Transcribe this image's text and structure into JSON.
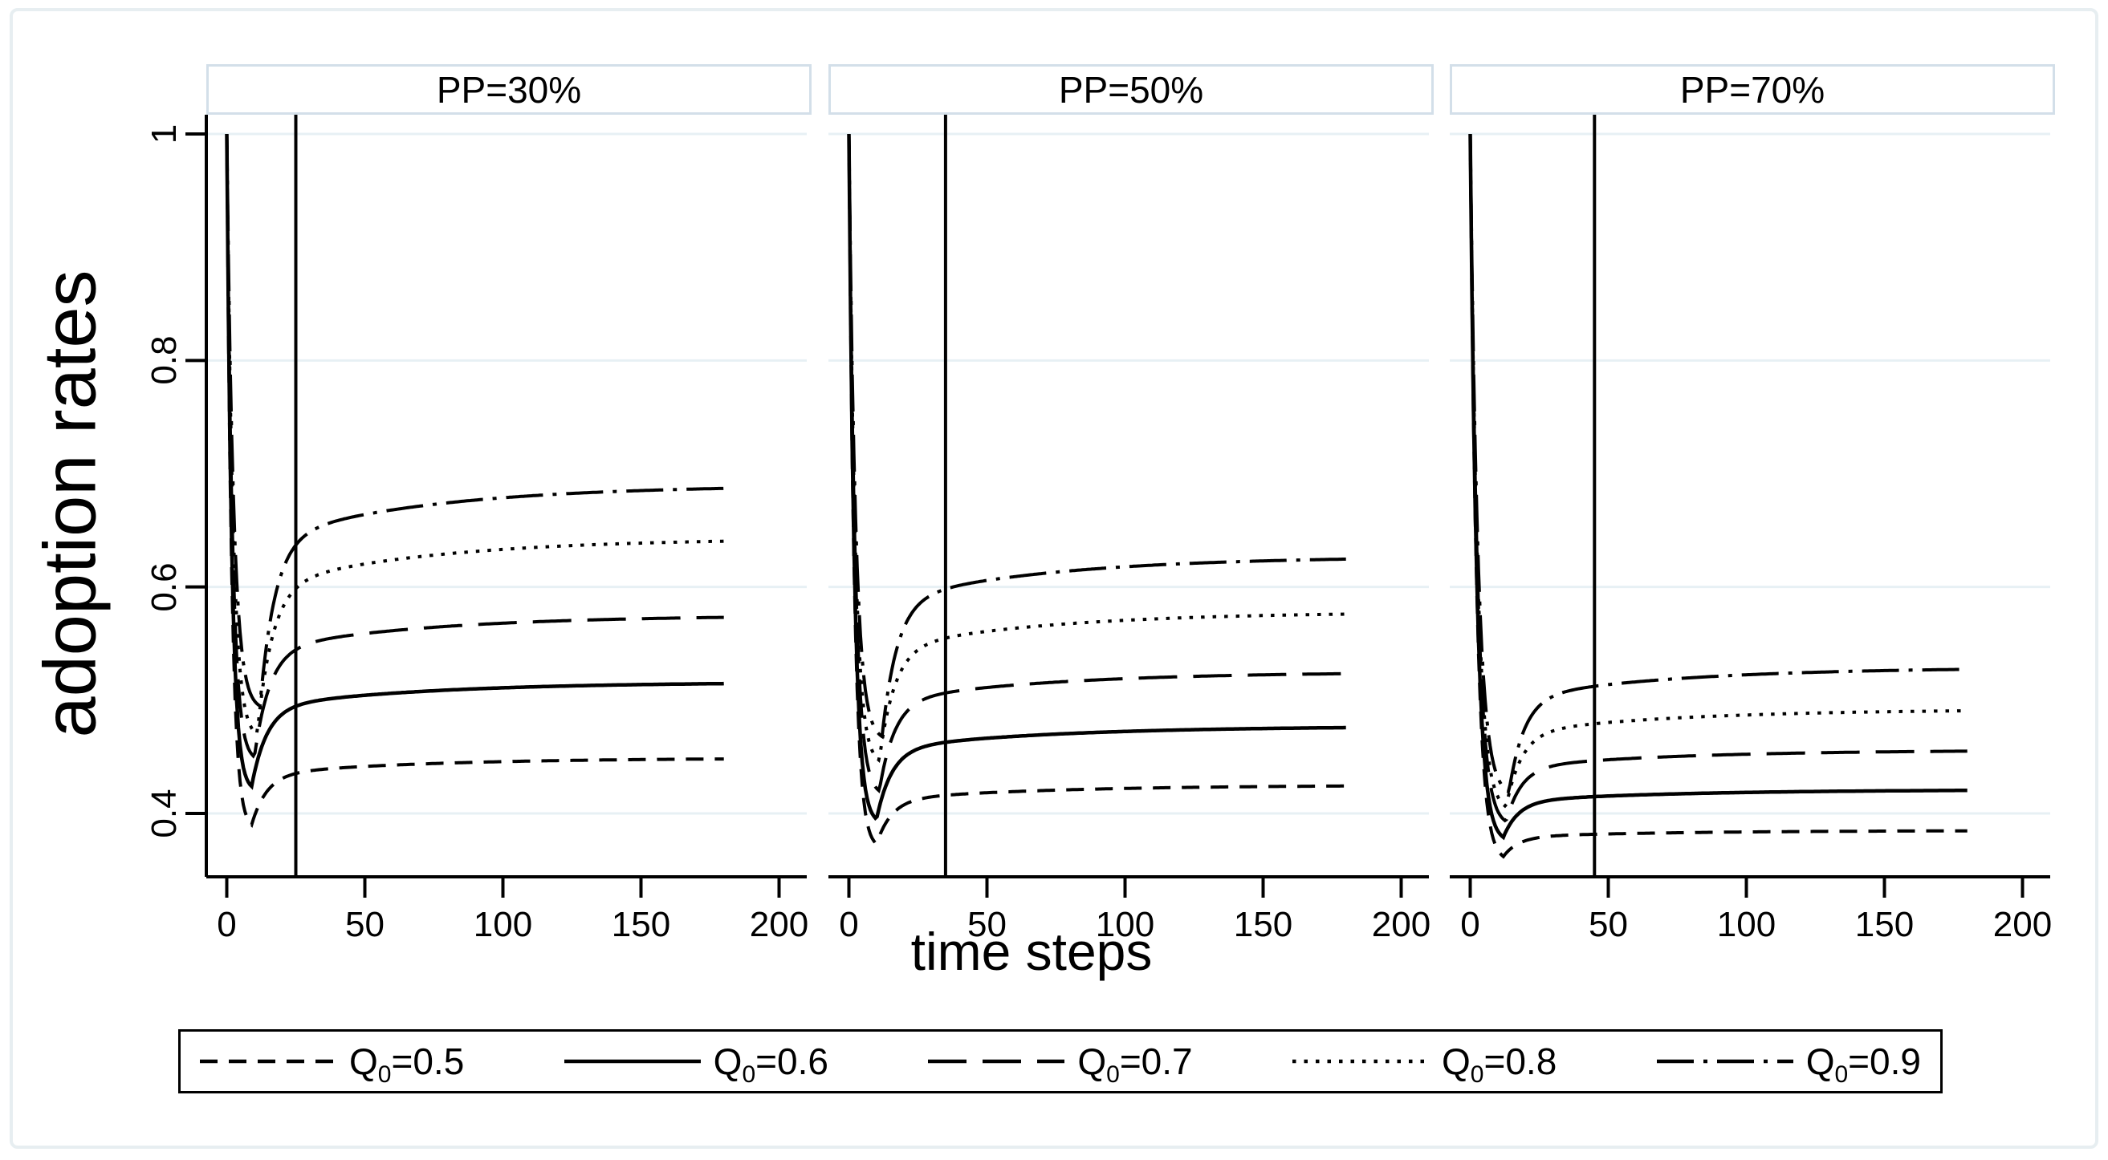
{
  "figure": {
    "background": "#ffffff",
    "frame_color": "#e7eef1",
    "grid_color": "#e7f0f4",
    "header_border_color": "#d3dfe9",
    "line_color": "#000000"
  },
  "chart_data": {
    "type": "line",
    "title": "",
    "xlabel": "time steps",
    "ylabel": "adoption rates",
    "grid": true,
    "x_ticks": [
      {
        "label": "0",
        "v": 0
      },
      {
        "label": "50",
        "v": 50
      },
      {
        "label": "100",
        "v": 100
      },
      {
        "label": "150",
        "v": 150
      },
      {
        "label": "200",
        "v": 200
      }
    ],
    "y_ticks": [
      {
        "label": "1",
        "v": 1.0
      },
      {
        "label": "0.8",
        "v": 0.8
      },
      {
        "label": "0.6",
        "v": 0.6
      },
      {
        "label": "0.4",
        "v": 0.4
      }
    ],
    "x_axis_max": 200,
    "curve_t_start": 0,
    "curve_t_end": 180,
    "panels": [
      {
        "label": "PP=30%",
        "ref_line_x": 25,
        "series": [
          {
            "name": "Q0=0.5",
            "style": "dash",
            "start_value": 1.0,
            "min_t": 9,
            "min_value": 0.39,
            "end_value": 0.449
          },
          {
            "name": "Q0=0.6",
            "style": "solid",
            "start_value": 1.0,
            "min_t": 9,
            "min_value": 0.424,
            "end_value": 0.516
          },
          {
            "name": "Q0=0.7",
            "style": "longdash",
            "start_value": 1.0,
            "min_t": 10,
            "min_value": 0.45,
            "end_value": 0.575
          },
          {
            "name": "Q0=0.8",
            "style": "dot",
            "start_value": 1.0,
            "min_t": 11,
            "min_value": 0.47,
            "end_value": 0.643
          },
          {
            "name": "Q0=0.9",
            "style": "dashdot",
            "start_value": 1.0,
            "min_t": 12,
            "min_value": 0.495,
            "end_value": 0.69
          }
        ]
      },
      {
        "label": "PP=50%",
        "ref_line_x": 35,
        "series": [
          {
            "name": "Q0=0.5",
            "style": "dash",
            "start_value": 1.0,
            "min_t": 10,
            "min_value": 0.373,
            "end_value": 0.425
          },
          {
            "name": "Q0=0.6",
            "style": "solid",
            "start_value": 1.0,
            "min_t": 10,
            "min_value": 0.395,
            "end_value": 0.477
          },
          {
            "name": "Q0=0.7",
            "style": "longdash",
            "start_value": 1.0,
            "min_t": 11,
            "min_value": 0.42,
            "end_value": 0.525
          },
          {
            "name": "Q0=0.8",
            "style": "dot",
            "start_value": 1.0,
            "min_t": 11,
            "min_value": 0.447,
            "end_value": 0.578
          },
          {
            "name": "Q0=0.9",
            "style": "dashdot",
            "start_value": 1.0,
            "min_t": 12,
            "min_value": 0.468,
            "end_value": 0.627
          }
        ]
      },
      {
        "label": "PP=70%",
        "ref_line_x": 45,
        "series": [
          {
            "name": "Q0=0.5",
            "style": "dash",
            "start_value": 1.0,
            "min_t": 12,
            "min_value": 0.362,
            "end_value": 0.385
          },
          {
            "name": "Q0=0.6",
            "style": "solid",
            "start_value": 1.0,
            "min_t": 12,
            "min_value": 0.379,
            "end_value": 0.421
          },
          {
            "name": "Q0=0.7",
            "style": "longdash",
            "start_value": 1.0,
            "min_t": 13,
            "min_value": 0.393,
            "end_value": 0.456
          },
          {
            "name": "Q0=0.8",
            "style": "dot",
            "start_value": 1.0,
            "min_t": 13,
            "min_value": 0.406,
            "end_value": 0.492
          },
          {
            "name": "Q0=0.9",
            "style": "dashdot",
            "start_value": 1.0,
            "min_t": 14,
            "min_value": 0.419,
            "end_value": 0.529
          }
        ]
      }
    ],
    "legend": {
      "entries": [
        {
          "prefix": "Q",
          "sub": "0",
          "rest": "=0.5",
          "style": "dash"
        },
        {
          "prefix": "Q",
          "sub": "0",
          "rest": "=0.6",
          "style": "solid"
        },
        {
          "prefix": "Q",
          "sub": "0",
          "rest": "=0.7",
          "style": "longdash"
        },
        {
          "prefix": "Q",
          "sub": "0",
          "rest": "=0.8",
          "style": "dot"
        },
        {
          "prefix": "Q",
          "sub": "0",
          "rest": "=0.9",
          "style": "dashdot"
        }
      ]
    }
  }
}
